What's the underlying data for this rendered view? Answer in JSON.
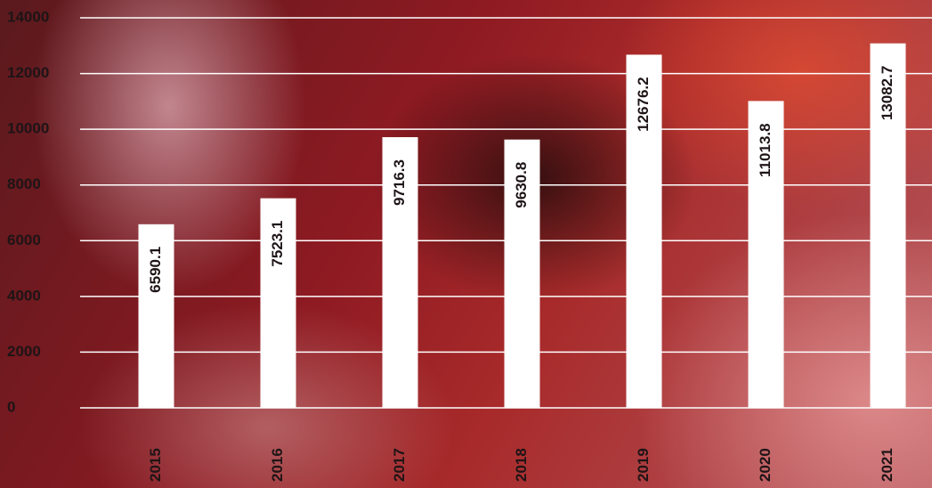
{
  "chart_data": {
    "type": "bar",
    "categories": [
      "2015",
      "2016",
      "2017",
      "2018",
      "2019",
      "2020",
      "2021"
    ],
    "values": [
      6590.1,
      7523.1,
      9716.3,
      9630.8,
      12676.2,
      11013.8,
      13082.7
    ],
    "color": "#ffffff",
    "ylim": [
      0,
      14000
    ],
    "yticks": [
      0,
      2000,
      4000,
      6000,
      8000,
      10000,
      12000,
      14000
    ],
    "grid": true
  }
}
